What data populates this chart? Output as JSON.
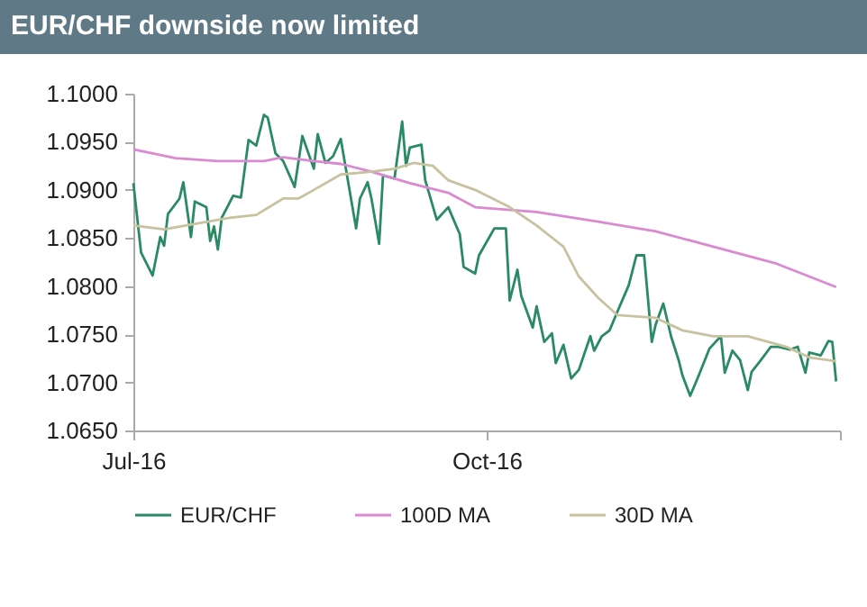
{
  "chart_data": {
    "type": "line",
    "title": "EUR/CHF downside now limited",
    "xlim": [
      "2016-07-01",
      "2017-01-01"
    ],
    "xticks": [
      {
        "value": "2016-07-01",
        "label": "Jul-16"
      },
      {
        "value": "2016-10-01",
        "label": "Oct-16"
      },
      {
        "value": "2017-01-01",
        "label": null
      }
    ],
    "ylim": [
      1.065,
      1.1
    ],
    "yticks": [
      {
        "value": 1.065,
        "label": "1.0650"
      },
      {
        "value": 1.07,
        "label": "1.0700"
      },
      {
        "value": 1.075,
        "label": "1.0750"
      },
      {
        "value": 1.08,
        "label": "1.0800"
      },
      {
        "value": 1.085,
        "label": "1.0850"
      },
      {
        "value": 1.09,
        "label": "1.0900"
      },
      {
        "value": 1.095,
        "label": "1.0950"
      },
      {
        "value": 1.1,
        "label": "1.1000"
      }
    ],
    "grid": false,
    "legend": "bottom",
    "series": [
      {
        "name": "EUR/CHF",
        "color": "#2a8a64",
        "x": [
          "2016-07-01",
          "2016-07-03",
          "2016-07-06",
          "2016-07-08",
          "2016-07-09",
          "2016-07-10",
          "2016-07-13",
          "2016-07-14",
          "2016-07-16",
          "2016-07-17",
          "2016-07-20",
          "2016-07-21",
          "2016-07-22",
          "2016-07-23",
          "2016-07-24",
          "2016-07-27",
          "2016-07-29",
          "2016-07-31",
          "2016-08-02",
          "2016-08-04",
          "2016-08-05",
          "2016-08-07",
          "2016-08-09",
          "2016-08-12",
          "2016-08-14",
          "2016-08-17",
          "2016-08-18",
          "2016-08-20",
          "2016-08-22",
          "2016-08-24",
          "2016-08-28",
          "2016-08-29",
          "2016-08-31",
          "2016-09-01",
          "2016-09-03",
          "2016-09-04",
          "2016-09-07",
          "2016-09-09",
          "2016-09-10",
          "2016-09-11",
          "2016-09-14",
          "2016-09-15",
          "2016-09-18",
          "2016-09-21",
          "2016-09-24",
          "2016-09-25",
          "2016-09-28",
          "2016-09-29",
          "2016-10-03",
          "2016-10-06",
          "2016-10-07",
          "2016-10-09",
          "2016-10-10",
          "2016-10-13",
          "2016-10-14",
          "2016-10-16",
          "2016-10-18",
          "2016-10-19",
          "2016-10-21",
          "2016-10-23",
          "2016-10-25",
          "2016-10-28",
          "2016-10-29",
          "2016-10-31",
          "2016-11-02",
          "2016-11-04",
          "2016-11-07",
          "2016-11-09",
          "2016-11-11",
          "2016-11-13",
          "2016-11-14",
          "2016-11-16",
          "2016-11-18",
          "2016-11-20",
          "2016-11-21",
          "2016-11-23",
          "2016-11-25",
          "2016-11-28",
          "2016-12-01",
          "2016-12-02",
          "2016-12-04",
          "2016-12-06",
          "2016-12-08",
          "2016-12-09",
          "2016-12-11",
          "2016-12-14",
          "2016-12-16",
          "2016-12-19",
          "2016-12-21",
          "2016-12-23",
          "2016-12-24",
          "2016-12-27",
          "2016-12-29",
          "2016-12-30",
          "2016-12-31"
        ],
        "values": [
          1.0907,
          1.0835,
          1.0811,
          1.0851,
          1.0842,
          1.0875,
          1.0891,
          1.0908,
          1.0851,
          1.0888,
          1.0882,
          1.0847,
          1.0862,
          1.0838,
          1.0871,
          1.0894,
          1.0892,
          1.0952,
          1.0946,
          1.0978,
          1.0975,
          1.0938,
          1.093,
          1.0903,
          1.0956,
          1.0922,
          1.0958,
          1.0928,
          1.0935,
          1.0953,
          1.086,
          1.0891,
          1.0908,
          1.0891,
          1.0844,
          1.0915,
          1.0912,
          1.0971,
          1.0925,
          1.0944,
          1.0947,
          1.091,
          1.0869,
          1.0882,
          1.0854,
          1.082,
          1.0813,
          1.0832,
          1.086,
          1.086,
          1.0785,
          1.0817,
          1.079,
          1.0757,
          1.0779,
          1.0742,
          1.0751,
          1.072,
          1.0739,
          1.0704,
          1.0713,
          1.0748,
          1.0733,
          1.0748,
          1.0754,
          1.0773,
          1.0801,
          1.0832,
          1.0832,
          1.0742,
          1.076,
          1.0782,
          1.0748,
          1.0723,
          1.0707,
          1.0686,
          1.0705,
          1.0735,
          1.0748,
          1.071,
          1.0733,
          1.0723,
          1.0692,
          1.0711,
          1.0721,
          1.0737,
          1.0737,
          1.0734,
          1.0737,
          1.071,
          1.0731,
          1.0728,
          1.0743,
          1.0742,
          1.0701
        ]
      },
      {
        "name": "100D MA",
        "color": "#d98ad0",
        "x": [
          "2016-07-01",
          "2016-07-12",
          "2016-07-23",
          "2016-08-04",
          "2016-08-09",
          "2016-08-17",
          "2016-08-24",
          "2016-09-01",
          "2016-09-11",
          "2016-09-21",
          "2016-09-28",
          "2016-10-14",
          "2016-10-30",
          "2016-11-14",
          "2016-11-29",
          "2016-12-15",
          "2016-12-24",
          "2016-12-31"
        ],
        "values": [
          1.0942,
          1.0933,
          1.093,
          1.093,
          1.0934,
          1.093,
          1.0927,
          1.0919,
          1.0907,
          1.0897,
          1.0882,
          1.0877,
          1.0867,
          1.0857,
          1.0841,
          1.0824,
          1.081,
          1.0799
        ]
      },
      {
        "name": "30D MA",
        "color": "#c8c2a0",
        "x": [
          "2016-07-01",
          "2016-07-09",
          "2016-07-16",
          "2016-07-26",
          "2016-08-02",
          "2016-08-09",
          "2016-08-13",
          "2016-08-17",
          "2016-08-24",
          "2016-09-01",
          "2016-09-07",
          "2016-09-12",
          "2016-09-17",
          "2016-09-21",
          "2016-09-28",
          "2016-10-07",
          "2016-10-14",
          "2016-10-21",
          "2016-10-25",
          "2016-10-30",
          "2016-11-04",
          "2016-11-14",
          "2016-11-21",
          "2016-11-29",
          "2016-12-08",
          "2016-12-18",
          "2016-12-24",
          "2016-12-31"
        ],
        "values": [
          1.0863,
          1.0859,
          1.0864,
          1.0871,
          1.0874,
          1.0891,
          1.0891,
          1.09,
          1.0916,
          1.0919,
          1.0922,
          1.0928,
          1.0925,
          1.091,
          1.09,
          1.0882,
          1.0863,
          1.0841,
          1.081,
          1.0788,
          1.077,
          1.0767,
          1.0754,
          1.0748,
          1.0748,
          1.0737,
          1.0726,
          1.0722
        ]
      }
    ]
  }
}
